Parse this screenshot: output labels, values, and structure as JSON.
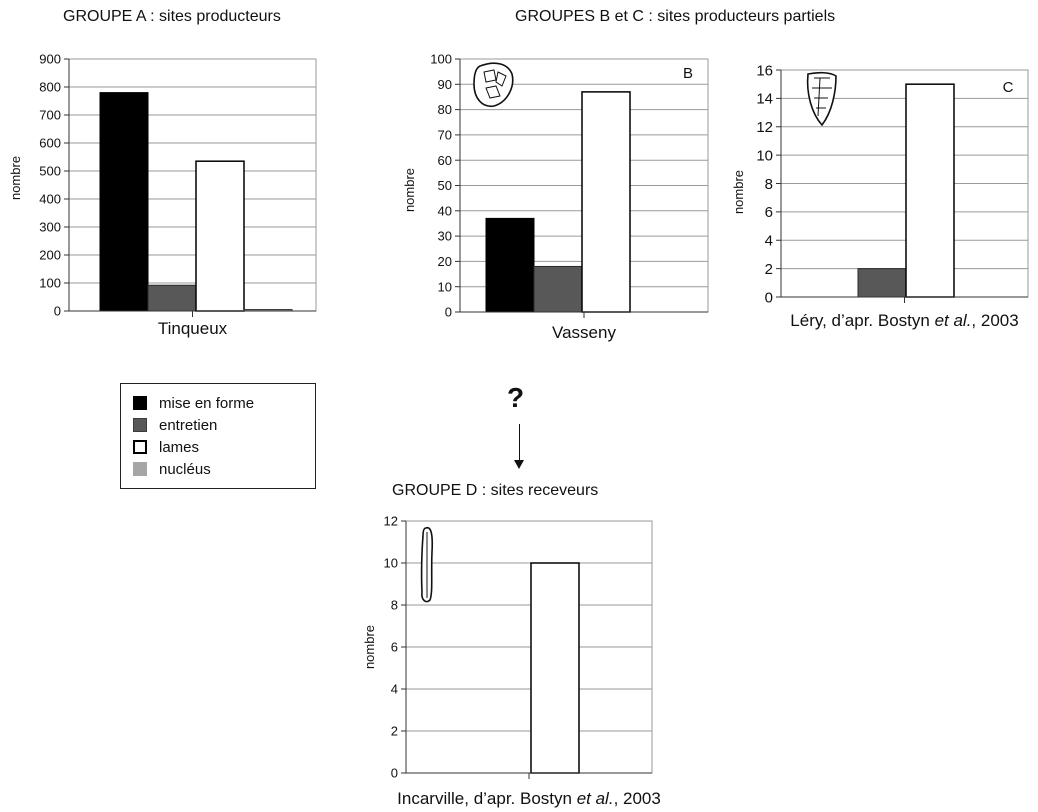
{
  "group_titles": {
    "a": "GROUPE A : sites producteurs",
    "bc": "GROUPES B et C : sites producteurs partiels",
    "d": "GROUPE D : sites receveurs"
  },
  "question_mark": "?",
  "legend": [
    {
      "label": "mise en forme",
      "color": "#000000"
    },
    {
      "label": "entretien",
      "color": "#585858"
    },
    {
      "label": "lames",
      "color": "#ffffff"
    },
    {
      "label": "nucléus",
      "color": "#a6a6a6"
    }
  ],
  "chart_data": [
    {
      "type": "bar",
      "site": "Tinqueux",
      "panel_letter": "",
      "ylabel": "nombre",
      "ylim": [
        0,
        900
      ],
      "yticks": [
        0,
        100,
        200,
        300,
        400,
        500,
        600,
        700,
        800,
        900
      ],
      "grid": true,
      "series": [
        {
          "name": "mise en forme",
          "value": 780
        },
        {
          "name": "entretien",
          "value": 92
        },
        {
          "name": "lames",
          "value": 535
        },
        {
          "name": "nucléus",
          "value": 5
        }
      ],
      "xlabel": {
        "prefix": "Tinqueux",
        "italic": "",
        "suffix": ""
      }
    },
    {
      "type": "bar",
      "site": "Vasseny",
      "panel_letter": "B",
      "ylabel": "nombre",
      "ylim": [
        0,
        100
      ],
      "yticks": [
        0,
        10,
        20,
        30,
        40,
        50,
        60,
        70,
        80,
        90,
        100
      ],
      "grid": true,
      "series": [
        {
          "name": "mise en forme",
          "value": 37
        },
        {
          "name": "entretien",
          "value": 18
        },
        {
          "name": "lames",
          "value": 87
        },
        {
          "name": "nucléus",
          "value": 0
        }
      ],
      "xlabel": {
        "prefix": "Vasseny",
        "italic": "",
        "suffix": ""
      }
    },
    {
      "type": "bar",
      "site": "Léry",
      "panel_letter": "C",
      "ylabel": "nombre",
      "ylim": [
        0,
        16
      ],
      "yticks": [
        0,
        2,
        4,
        6,
        8,
        10,
        12,
        14,
        16
      ],
      "grid": true,
      "series": [
        {
          "name": "mise en forme",
          "value": 0
        },
        {
          "name": "entretien",
          "value": 2
        },
        {
          "name": "lames",
          "value": 15
        },
        {
          "name": "nucléus",
          "value": 0
        }
      ],
      "xlabel": {
        "prefix": "Léry, d’apr. Bostyn ",
        "italic": "et al.",
        "suffix": ", 2003"
      }
    },
    {
      "type": "bar",
      "site": "Incarville",
      "panel_letter": "",
      "ylabel": "nombre",
      "ylim": [
        0,
        12
      ],
      "yticks": [
        0,
        2,
        4,
        6,
        8,
        10,
        12
      ],
      "grid": true,
      "series": [
        {
          "name": "mise en forme",
          "value": 0
        },
        {
          "name": "entretien",
          "value": 0
        },
        {
          "name": "lames",
          "value": 10
        },
        {
          "name": "nucléus",
          "value": 0
        }
      ],
      "xlabel": {
        "prefix": "Incarville, d’apr. Bostyn ",
        "italic": "et al.",
        "suffix": ", 2003"
      }
    }
  ]
}
